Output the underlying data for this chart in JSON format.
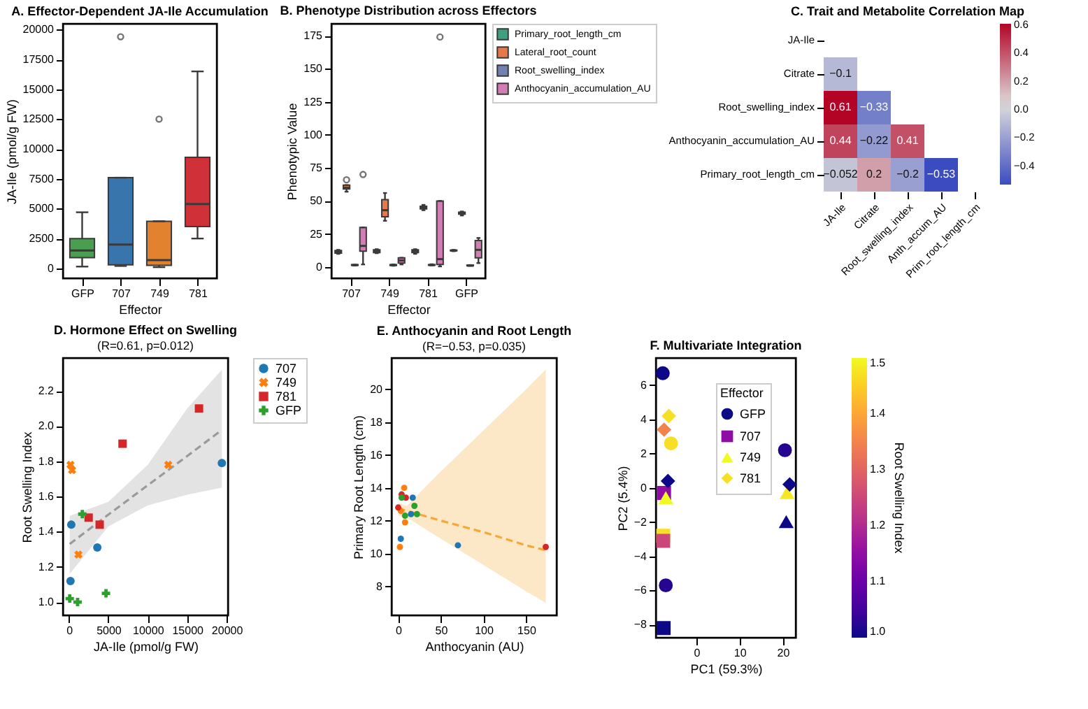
{
  "chart_data": [
    {
      "type": "box",
      "title": "A. Effector-Dependent JA-Ile Accumulation",
      "xlabel": "Effector",
      "ylabel": "JA-Ile (pmol/g FW)",
      "categories": [
        "GFP",
        "707",
        "749",
        "781"
      ],
      "colors": [
        "#4a9e4f",
        "#3875ac",
        "#e2822f",
        "#d03037"
      ],
      "boxes": [
        {
          "low": 150,
          "q1": 900,
          "median": 1500,
          "q3": 2500,
          "high": 4700
        },
        {
          "low": 200,
          "q1": 300,
          "median": 2000,
          "q3": 7600,
          "high": 7600,
          "outliers": [
            19400
          ]
        },
        {
          "low": 100,
          "q1": 250,
          "median": 700,
          "q3": 3950,
          "high": 3950,
          "outliers": [
            12500
          ]
        },
        {
          "low": 2500,
          "q1": 3500,
          "median": 5400,
          "q3": 9300,
          "high": 16500
        }
      ],
      "ylim": [
        -830,
        20490
      ],
      "yticks": [
        0,
        2500,
        5000,
        7500,
        10000,
        12500,
        15000,
        17500,
        20000
      ]
    },
    {
      "type": "box",
      "title": "B. Phenotype Distribution across Effectors",
      "xlabel": "Effector",
      "ylabel": "Phenotypic Value",
      "categories": [
        "707",
        "749",
        "781",
        "GFP"
      ],
      "legend": "right",
      "series": [
        {
          "name": "Primary_root_length_cm",
          "color": "#3f9f82",
          "boxes": [
            {
              "low": 10,
              "q1": 10.5,
              "median": 11.5,
              "q3": 12.5,
              "high": 13
            },
            {
              "low": 10.5,
              "q1": 11,
              "median": 12,
              "q3": 13,
              "high": 13.5
            },
            {
              "low": 10,
              "q1": 11,
              "median": 12,
              "q3": 13,
              "high": 13.5
            },
            {
              "low": 12,
              "q1": 12.3,
              "median": 12.5,
              "q3": 12.8,
              "high": 13
            }
          ]
        },
        {
          "name": "Lateral_root_count",
          "color": "#e6784a",
          "boxes": [
            {
              "low": 57,
              "q1": 59,
              "median": 60,
              "q3": 62,
              "high": 62,
              "outliers": [
                66
              ]
            },
            {
              "low": 35,
              "q1": 38,
              "median": 43,
              "q3": 51,
              "high": 56
            },
            {
              "low": 43,
              "q1": 44,
              "median": 45,
              "q3": 46,
              "high": 47
            },
            {
              "low": 39,
              "q1": 40,
              "median": 41,
              "q3": 41.5,
              "high": 42
            }
          ]
        },
        {
          "name": "Root_swelling_index",
          "color": "#7181b1",
          "boxes": [
            {
              "low": 1.1,
              "q1": 1.3,
              "median": 1.5,
              "q3": 1.8,
              "high": 1.8
            },
            {
              "low": 1,
              "q1": 1.2,
              "median": 1.5,
              "q3": 1.8,
              "high": 2
            },
            {
              "low": 1.3,
              "q1": 1.4,
              "median": 1.5,
              "q3": 1.8,
              "high": 2.1
            },
            {
              "low": 1,
              "q1": 1,
              "median": 1.03,
              "q3": 1.5,
              "high": 1.5
            }
          ]
        },
        {
          "name": "Anthocyanin_accumulation_AU",
          "color": "#d27db3",
          "boxes": [
            {
              "low": 2,
              "q1": 12,
              "median": 16,
              "q3": 30,
              "high": 30,
              "outliers": [
                70
              ]
            },
            {
              "low": 2,
              "q1": 3,
              "median": 5,
              "q3": 7,
              "high": 7
            },
            {
              "low": 0.5,
              "q1": 2,
              "median": 6,
              "q3": 50,
              "high": 50,
              "outliers": [
                174
              ]
            },
            {
              "low": 3,
              "q1": 7,
              "median": 13,
              "q3": 20,
              "high": 22
            }
          ]
        }
      ],
      "ylim": [
        -8.5,
        184
      ],
      "yticks": [
        0,
        25,
        50,
        75,
        100,
        125,
        150,
        175
      ]
    },
    {
      "type": "heatmap",
      "title": "C. Trait and Metabolite Correlation Map",
      "categories": [
        "JA-Ile",
        "Citrate",
        "Root_swelling_index",
        "Anth_accum_AU",
        "Prim_root_length_cm"
      ],
      "y_categories": [
        "JA-Ile",
        "Citrate",
        "Root_swelling_index",
        "Anthocyanin_accumulation_AU",
        "Primary_root_length_cm"
      ],
      "cells": [
        [
          null,
          null,
          null,
          null,
          null
        ],
        [
          -0.1,
          null,
          null,
          null,
          null
        ],
        [
          0.61,
          -0.33,
          null,
          null,
          null
        ],
        [
          0.44,
          -0.22,
          0.41,
          null,
          null
        ],
        [
          -0.052,
          0.2,
          -0.2,
          -0.53,
          null
        ]
      ],
      "cell_labels": [
        [
          null,
          null,
          null,
          null,
          null
        ],
        [
          "−0.1",
          null,
          null,
          null,
          null
        ],
        [
          "0.61",
          "−0.33",
          null,
          null,
          null
        ],
        [
          "0.44",
          "−0.22",
          "0.41",
          null,
          null
        ],
        [
          "−0.052",
          "0.2",
          "−0.2",
          "−0.53",
          null
        ]
      ],
      "clim": [
        -0.53,
        0.61
      ],
      "cticks": [
        {
          "value": -0.4,
          "label": "−0.4"
        },
        {
          "value": -0.2,
          "label": "−0.2"
        },
        {
          "value": 0,
          "label": "0.0"
        },
        0.2,
        0.4,
        0.6
      ]
    },
    {
      "type": "scatter",
      "title": "D. Hormone Effect on Swelling",
      "subtitle": "(R=0.61, p=0.012)",
      "xlabel": "JA-Ile (pmol/g FW)",
      "ylabel": "Root Swelling Index",
      "legend": "right",
      "xlim": [
        -760,
        20170
      ],
      "ylim": [
        0.925,
        2.387
      ],
      "xticks": [
        0,
        5000,
        10000,
        15000,
        20000
      ],
      "yticks": [
        {
          "value": 1,
          "label": "1.0"
        },
        1.2,
        1.4,
        1.6,
        1.8,
        {
          "value": 2,
          "label": "2.0"
        },
        2.2
      ],
      "series": [
        {
          "type": "line",
          "color": "#9a9a9a",
          "line_style": "dashed",
          "x": [
            100,
            5000,
            10000,
            15000,
            19400
          ],
          "values": [
            1.33,
            1.497,
            1.664,
            1.83,
            1.978
          ],
          "lower": [
            1.16,
            1.43,
            1.55,
            1.61,
            1.65
          ],
          "upper": [
            1.49,
            1.57,
            1.78,
            2.1,
            2.32
          ]
        },
        {
          "name": "707",
          "color": "#1f77b4",
          "marker": "circle",
          "x": [
            19400,
            300,
            3600,
            200
          ],
          "values": [
            1.79,
            1.44,
            1.31,
            1.12
          ]
        },
        {
          "name": "749",
          "color": "#ff7f0e",
          "marker": "x",
          "x": [
            200,
            400,
            12600,
            1200
          ],
          "values": [
            1.78,
            1.75,
            1.78,
            1.27
          ]
        },
        {
          "name": "781",
          "color": "#d62728",
          "marker": "square",
          "x": [
            16500,
            6800,
            2500,
            3900
          ],
          "values": [
            2.1,
            1.9,
            1.48,
            1.44
          ]
        },
        {
          "name": "GFP",
          "color": "#2ca02c",
          "marker": "cross",
          "x": [
            1700,
            100,
            1100,
            4700
          ],
          "values": [
            1.5,
            1.02,
            1.0,
            1.05
          ]
        }
      ]
    },
    {
      "type": "scatter",
      "title": "E. Anthocyanin and Root Length",
      "subtitle": "(R=−0.53, p=0.035)",
      "xlabel": "Anthocyanin (AU)",
      "ylabel": "Primary Root Length (cm)",
      "xlim": [
        -7.8,
        185.7
      ],
      "ylim": [
        6.24,
        21.9
      ],
      "xticks": [
        0,
        50,
        100,
        150
      ],
      "yticks": [
        8,
        10,
        12,
        14,
        16,
        18,
        20
      ],
      "series": [
        {
          "type": "line",
          "color": "#f5a833",
          "line_style": "dashed",
          "x": [
            0,
            10,
            50,
            100,
            150,
            173
          ],
          "values": [
            12.7,
            12.6,
            12.0,
            11.3,
            10.5,
            10.2
          ],
          "lower": [
            12.3,
            12.2,
            10.9,
            9.3,
            7.7,
            7.0
          ],
          "upper": [
            13.1,
            12.9,
            15.0,
            17.5,
            20.0,
            21.2
          ]
        },
        {
          "color": "#1f77b4",
          "marker": "circle",
          "x": [
            17,
            3,
            70,
            15
          ],
          "values": [
            13.4,
            10.9,
            10.5,
            12.4
          ]
        },
        {
          "color": "#ff7f0e",
          "marker": "circle",
          "x": [
            7,
            3,
            8,
            2
          ],
          "values": [
            14.0,
            12.6,
            11.9,
            10.4
          ]
        },
        {
          "color": "#d62728",
          "marker": "circle",
          "x": [
            0,
            9,
            173,
            4
          ],
          "values": [
            12.8,
            13.4,
            10.4,
            13.6
          ]
        },
        {
          "color": "#2ca02c",
          "marker": "circle",
          "x": [
            4,
            19,
            8,
            22
          ],
          "values": [
            13.4,
            12.9,
            12.3,
            12.4
          ]
        }
      ]
    },
    {
      "type": "scatter",
      "title": "F. Multivariate Integration",
      "xlabel": "PC1 (59.3%)",
      "ylabel": "PC2 (5.4%)",
      "legend": "top right",
      "legend_title": "Effector",
      "clabel": "Root Swelling Index",
      "clim": [
        1.0,
        1.5
      ],
      "cticks": [
        {
          "value": 1,
          "label": "1.0"
        },
        1.1,
        1.2,
        1.3,
        1.4,
        1.5
      ],
      "xlim": [
        -9.4,
        23.0
      ],
      "ylim": [
        -8.76,
        7.59
      ],
      "xticks": [
        0,
        10,
        20
      ],
      "yticks": [
        {
          "value": -8,
          "label": "−8"
        },
        {
          "value": -6,
          "label": "−6"
        },
        {
          "value": -4,
          "label": "−4"
        },
        {
          "value": -2,
          "label": "−2"
        },
        0,
        2,
        4,
        6
      ],
      "series": [
        {
          "name": "GFP",
          "marker": "circle",
          "x": [
            -7.8,
            -5.9,
            -7.1,
            20.5
          ],
          "values": [
            6.7,
            2.6,
            -5.7,
            2.2
          ],
          "cvalues": [
            1.0,
            1.47,
            1.02,
            1.02
          ],
          "colors": [
            "#0d0887",
            "#f7df23",
            "#230690",
            "#230690"
          ]
        },
        {
          "name": "707",
          "marker": "square",
          "x": [
            -7.5,
            -7.7,
            -7.7,
            -7.6
          ],
          "values": [
            -0.3,
            -2.8,
            -3.1,
            -8.2
          ],
          "cvalues": [
            1.15,
            1.47,
            1.25,
            1.0
          ],
          "colors": [
            "#8f0da4",
            "#f7df23",
            "#cc4778",
            "#0d0887"
          ]
        },
        {
          "name": "749",
          "marker": "triangle",
          "x": [
            -7.1,
            21.0,
            20.8
          ],
          "values": [
            -0.6,
            -0.3,
            -2.0
          ],
          "cvalues": [
            1.5,
            1.48,
            1.0
          ],
          "colors": [
            "#f0f921",
            "#f5e922",
            "#0d0887"
          ]
        },
        {
          "name": "781",
          "marker": "diamond",
          "x": [
            -6.4,
            -7.5,
            -6.6,
            21.6
          ],
          "values": [
            4.2,
            3.4,
            0.4,
            0.2
          ],
          "cvalues": [
            1.47,
            1.35,
            1.0,
            1.0
          ],
          "colors": [
            "#f7df23",
            "#f2844b",
            "#0d0887",
            "#0d0887"
          ]
        }
      ]
    }
  ]
}
